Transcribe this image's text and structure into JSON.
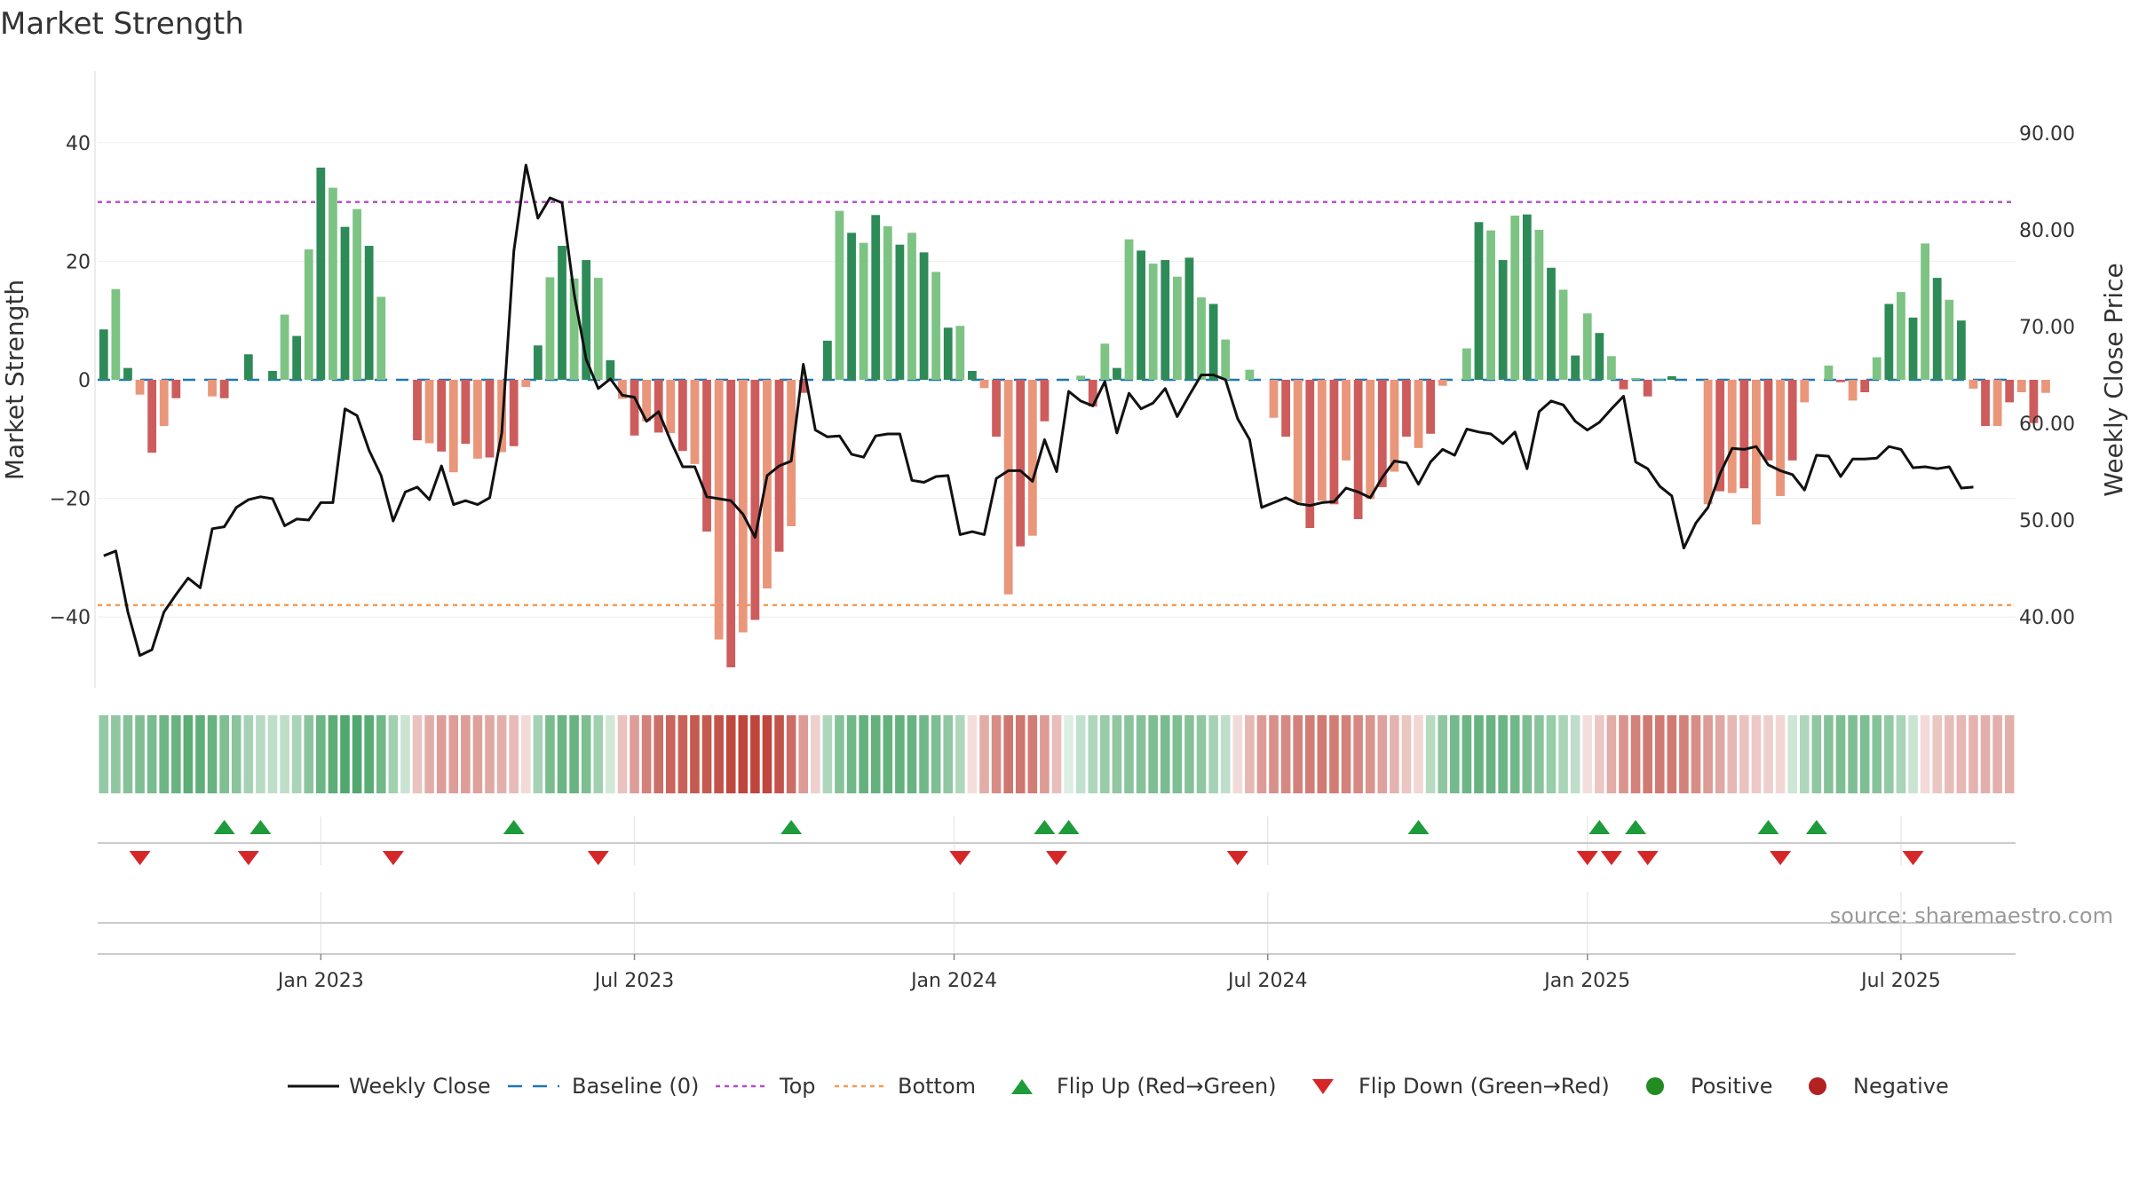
{
  "title": "Market Strength",
  "source": "source: sharemaestro.com",
  "colors": {
    "pos_strong": "#2e8b57",
    "pos_light": "#7dc383",
    "neg_strong": "#cd5c5c",
    "neg_light": "#e9967a",
    "price": "#111111",
    "baseline": "#1f77b4",
    "top": "#b44fc6",
    "bottom": "#f39c53",
    "flip_up": "#1e9b3a",
    "flip_down": "#d62728",
    "positive": "#228b22",
    "negative": "#b22222"
  },
  "chart_data": {
    "type": "bar",
    "title": "Market Strength",
    "ylabel": "Market Strength",
    "y2label": "Weekly Close Price",
    "ylim": [
      -52,
      52
    ],
    "y2lim": [
      31.0,
      94.5
    ],
    "yticks": [
      40,
      20,
      0,
      -20,
      -40
    ],
    "ytick_labels": [
      "40",
      "20",
      "0",
      "−20",
      "−40"
    ],
    "y2ticks": [
      90,
      80,
      70,
      60,
      50,
      40
    ],
    "y2tick_labels": [
      "90.00",
      "80.00",
      "70.00",
      "60.00",
      "50.00",
      "40.00"
    ],
    "xticks": [
      {
        "label": "Jan 2023",
        "week": 18
      },
      {
        "label": "Jul 2023",
        "week": 44
      },
      {
        "label": "Jan 2024",
        "week": 70.5
      },
      {
        "label": "Jul 2024",
        "week": 96.5
      },
      {
        "label": "Jan 2025",
        "week": 123
      },
      {
        "label": "Jul 2025",
        "week": 149
      }
    ],
    "top_level": 30,
    "bottom_level": -38,
    "baseline": 0,
    "weeks": 159,
    "strength": [
      8.5,
      15.3,
      2,
      -2.5,
      -12.3,
      -7.8,
      -3.1,
      0,
      0,
      -2.8,
      -3.1,
      0,
      4.3,
      0,
      1.5,
      11,
      7.4,
      22,
      35.8,
      32.4,
      25.8,
      28.8,
      22.6,
      14,
      0,
      0,
      -10.2,
      -10.7,
      -12.1,
      -15.6,
      -10.8,
      -13.3,
      -13.1,
      -12.2,
      -11.2,
      -1.2,
      5.8,
      17.3,
      22.6,
      17.1,
      20.2,
      17.2,
      3.3,
      -3.2,
      -9.4,
      -7,
      -8.9,
      -9,
      -12,
      -14.2,
      -25.6,
      -43.8,
      -48.5,
      -42.6,
      -40.5,
      -35.2,
      -29,
      -24.7,
      -2.2,
      0,
      6.6,
      28.5,
      24.8,
      23.1,
      27.8,
      25.9,
      22.8,
      24.8,
      21.5,
      18.2,
      8.8,
      9.1,
      1.5,
      -1.4,
      -9.6,
      -36.2,
      -28.1,
      -26.3,
      -7,
      0,
      0,
      0.7,
      -4.5,
      6.1,
      2,
      23.7,
      21.8,
      19.6,
      20.2,
      17.4,
      20.6,
      13.9,
      12.8,
      6.8,
      0,
      1.7,
      0,
      -6.4,
      -9.6,
      -20.6,
      -25,
      -20.4,
      -21,
      -13.6,
      -23.5,
      -20.1,
      -18.1,
      -15.5,
      -9.6,
      -11.5,
      -9.1,
      -1,
      0,
      5.3,
      26.6,
      25.2,
      20.2,
      27.7,
      27.9,
      25.3,
      18.9,
      15.2,
      4.1,
      11.2,
      7.9,
      4,
      -1.6,
      0.3,
      -2.8,
      0.1,
      0.6,
      0,
      0,
      -21,
      -18.8,
      -19.1,
      -18.3,
      -24.4,
      -13.6,
      -19.6,
      -13.6,
      -3.8,
      0,
      2.4,
      -0.4,
      -3.5,
      -2.1,
      3.8,
      12.8,
      14.8,
      10.5,
      23,
      17.2,
      13.5,
      10,
      -1.5,
      -7.8,
      -7.8,
      -3.8,
      -2.1,
      -7.3,
      -2.2
    ],
    "close": [
      46.3,
      46.8,
      40.5,
      36,
      36.6,
      40.5,
      42.3,
      44,
      43,
      49.1,
      49.3,
      51.3,
      52.1,
      52.4,
      52.2,
      49.4,
      50.1,
      50,
      51.8,
      51.8,
      61.5,
      60.8,
      57.2,
      54.6,
      49.9,
      52.9,
      53.4,
      52.1,
      55.6,
      51.6,
      52,
      51.6,
      52.3,
      59,
      77.8,
      86.7,
      81.2,
      83.3,
      82.8,
      73.4,
      66.6,
      63.6,
      64.6,
      62.9,
      62.7,
      60.2,
      61.2,
      58.2,
      55.5,
      55.5,
      52.4,
      52.2,
      52,
      50.6,
      48.2,
      54.6,
      55.6,
      56.1,
      66.1,
      59.3,
      58.6,
      58.7,
      56.8,
      56.5,
      58.7,
      58.9,
      58.9,
      54.1,
      53.9,
      54.5,
      54.6,
      48.5,
      48.8,
      48.5,
      54.3,
      55.1,
      55.1,
      54,
      58.3,
      55,
      63.3,
      62.3,
      61.8,
      64.3,
      59,
      63.1,
      61.5,
      62.1,
      63.6,
      60.7,
      62.9,
      65,
      65,
      64.5,
      60.5,
      58.3,
      51.3,
      51.8,
      52.3,
      51.7,
      51.5,
      51.8,
      51.9,
      53.3,
      52.9,
      52.3,
      54.4,
      56.1,
      55.9,
      53.7,
      56,
      57.3,
      56.7,
      59.4,
      59.1,
      58.9,
      57.9,
      59.1,
      55.3,
      61.2,
      62.3,
      61.9,
      60.2,
      59.3,
      60.1,
      61.5,
      62.8,
      56,
      55.3,
      53.5,
      52.5,
      47.1,
      49.7,
      51.3,
      54.8,
      57.4,
      57.3,
      57.6,
      55.7,
      55.1,
      54.7,
      53.1,
      56.7,
      56.6,
      54.5,
      56.3,
      56.3,
      56.4,
      57.6,
      57.3,
      55.4,
      55.5,
      55.3,
      55.5,
      53.3,
      53.4
    ],
    "heat_strip": [
      18,
      19,
      22,
      24,
      25,
      28,
      29,
      32,
      31,
      29,
      24,
      21,
      14,
      10,
      8,
      8,
      13,
      21,
      28,
      32,
      35,
      35,
      33,
      27,
      15,
      5,
      -9,
      -15,
      -19,
      -19,
      -19,
      -18,
      -16,
      -14,
      -11,
      -2,
      14,
      25,
      28,
      29,
      24,
      15,
      3,
      -9,
      -19,
      -27,
      -32,
      -35,
      -36,
      -38,
      -38,
      -40,
      -43,
      -45,
      -45,
      -43,
      -40,
      -33,
      -20,
      -5,
      12,
      22,
      27,
      30,
      30,
      30,
      30,
      29,
      27,
      24,
      19,
      12,
      -1,
      -15,
      -24,
      -30,
      -30,
      -28,
      -20,
      -10,
      0,
      7,
      12,
      17,
      19,
      21,
      22,
      24,
      25,
      24,
      22,
      19,
      14,
      8,
      -2,
      -12,
      -20,
      -23,
      -25,
      -27,
      -28,
      -29,
      -28,
      -27,
      -25,
      -22,
      -18,
      -13,
      -8,
      -3,
      10,
      20,
      26,
      28,
      29,
      29,
      28,
      27,
      24,
      21,
      17,
      13,
      8,
      -1,
      -8,
      -15,
      -22,
      -27,
      -29,
      -29,
      -29,
      -27,
      -24,
      -20,
      -16,
      -12,
      -9,
      -7,
      -5,
      -3,
      4,
      12,
      19,
      22,
      24,
      24,
      24,
      22,
      18,
      13,
      5,
      -2,
      -8,
      -11,
      -12,
      -13,
      -14,
      -14,
      -14
    ],
    "flip_up_weeks": [
      10,
      13,
      34,
      57,
      78,
      80,
      109,
      124,
      127,
      138,
      142
    ],
    "flip_down_weeks": [
      3,
      12,
      24,
      41,
      71,
      79,
      94,
      123,
      125,
      128,
      139,
      150
    ],
    "legend": [
      "Weekly Close",
      "Baseline (0)",
      "Top",
      "Bottom",
      "Flip Up (Red→Green)",
      "Flip Down (Green→Red)",
      "Positive",
      "Negative"
    ]
  }
}
